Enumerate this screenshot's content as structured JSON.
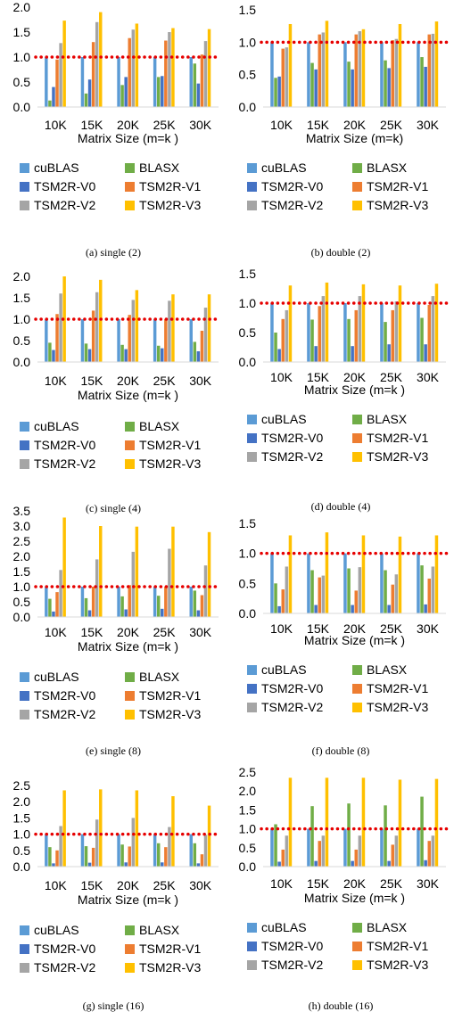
{
  "series_colors": [
    "#5B9BD5",
    "#70AD47",
    "#4472C4",
    "#ED7D31",
    "#A5A5A5",
    "#FFC000"
  ],
  "baseline_color": "#E60000",
  "chart_data": [
    {
      "type": "bar",
      "caption": "(a) single (2)",
      "categories": [
        "10K",
        "15K",
        "20K",
        "25K",
        "30K"
      ],
      "xlabel": "Matrix Size (m=k )",
      "ylim": [
        0,
        2.0
      ],
      "yticks": [
        "0.0",
        "0.5",
        "1.0",
        "1.5",
        "2.0"
      ],
      "baseline": 1.0,
      "series": [
        {
          "name": "cuBLAS",
          "values": [
            1.0,
            1.0,
            1.0,
            1.0,
            1.0
          ]
        },
        {
          "name": "BLASX",
          "values": [
            0.13,
            0.27,
            0.44,
            0.6,
            0.87
          ]
        },
        {
          "name": "TSM2R-V0",
          "values": [
            0.4,
            0.55,
            0.6,
            0.62,
            0.47
          ]
        },
        {
          "name": "TSM2R-V1",
          "values": [
            0.95,
            1.3,
            1.38,
            1.33,
            1.05
          ]
        },
        {
          "name": "TSM2R-V2",
          "values": [
            1.28,
            1.7,
            1.55,
            1.5,
            1.32
          ]
        },
        {
          "name": "TSM2R-V3",
          "values": [
            1.73,
            1.9,
            1.67,
            1.58,
            1.56
          ]
        }
      ]
    },
    {
      "type": "bar",
      "caption": "(b) double (2)",
      "categories": [
        "10K",
        "15K",
        "20K",
        "25K",
        "30K"
      ],
      "xlabel": "Matrix Size (m=k)",
      "ylim": [
        0,
        1.5
      ],
      "yticks": [
        "0.0",
        "0.5",
        "1.0",
        "1.5"
      ],
      "baseline": 1.0,
      "series": [
        {
          "name": "cuBLAS",
          "values": [
            1.0,
            1.0,
            1.0,
            1.0,
            1.0
          ]
        },
        {
          "name": "BLASX",
          "values": [
            0.45,
            0.68,
            0.7,
            0.72,
            0.77
          ]
        },
        {
          "name": "TSM2R-V0",
          "values": [
            0.47,
            0.58,
            0.58,
            0.6,
            0.62
          ]
        },
        {
          "name": "TSM2R-V1",
          "values": [
            0.9,
            1.12,
            1.12,
            1.03,
            1.12
          ]
        },
        {
          "name": "TSM2R-V2",
          "values": [
            0.92,
            1.15,
            1.17,
            1.05,
            1.13
          ]
        },
        {
          "name": "TSM2R-V3",
          "values": [
            1.28,
            1.33,
            1.2,
            1.28,
            1.32
          ]
        }
      ]
    },
    {
      "type": "bar",
      "caption": "(c) single (4)",
      "categories": [
        "10K",
        "15K",
        "20K",
        "25K",
        "30K"
      ],
      "xlabel": "Matrix Size (m=k )",
      "ylim": [
        0,
        2.0
      ],
      "yticks": [
        "0.0",
        "0.5",
        "1.0",
        "1.5",
        "2.0"
      ],
      "baseline": 1.0,
      "series": [
        {
          "name": "cuBLAS",
          "values": [
            1.0,
            1.0,
            1.0,
            1.0,
            1.0
          ]
        },
        {
          "name": "BLASX",
          "values": [
            0.45,
            0.43,
            0.4,
            0.38,
            0.47
          ]
        },
        {
          "name": "TSM2R-V0",
          "values": [
            0.28,
            0.3,
            0.3,
            0.32,
            0.25
          ]
        },
        {
          "name": "TSM2R-V1",
          "values": [
            1.12,
            1.2,
            1.1,
            1.0,
            0.73
          ]
        },
        {
          "name": "TSM2R-V2",
          "values": [
            1.6,
            1.63,
            1.45,
            1.43,
            1.27
          ]
        },
        {
          "name": "TSM2R-V3",
          "values": [
            2.0,
            1.92,
            1.68,
            1.58,
            1.58
          ]
        }
      ]
    },
    {
      "type": "bar",
      "caption": "(d) double (4)",
      "categories": [
        "10K",
        "15K",
        "20K",
        "25K",
        "30K"
      ],
      "xlabel": "Matrix Size (m=k )",
      "ylim": [
        0,
        1.5
      ],
      "yticks": [
        "0.0",
        "0.5",
        "1.0",
        "1.5"
      ],
      "baseline": 1.0,
      "series": [
        {
          "name": "cuBLAS",
          "values": [
            1.0,
            1.0,
            1.0,
            1.0,
            1.0
          ]
        },
        {
          "name": "BLASX",
          "values": [
            0.5,
            0.72,
            0.73,
            0.68,
            0.75
          ]
        },
        {
          "name": "TSM2R-V0",
          "values": [
            0.22,
            0.27,
            0.27,
            0.3,
            0.3
          ]
        },
        {
          "name": "TSM2R-V1",
          "values": [
            0.73,
            0.95,
            0.88,
            0.88,
            0.97
          ]
        },
        {
          "name": "TSM2R-V2",
          "values": [
            0.88,
            1.12,
            1.12,
            1.03,
            1.12
          ]
        },
        {
          "name": "TSM2R-V3",
          "values": [
            1.3,
            1.35,
            1.32,
            1.3,
            1.33
          ]
        }
      ]
    },
    {
      "type": "bar",
      "caption": "(e) single (8)",
      "categories": [
        "10K",
        "15K",
        "20K",
        "25K",
        "30K"
      ],
      "xlabel": "Matrix Size (m=k )",
      "ylim": [
        0,
        3.5
      ],
      "yticks": [
        "0.0",
        "0.5",
        "1.0",
        "1.5",
        "2.0",
        "2.5",
        "3.0",
        "3.5"
      ],
      "baseline": 1.0,
      "series": [
        {
          "name": "cuBLAS",
          "values": [
            1.0,
            1.0,
            1.0,
            1.0,
            1.0
          ]
        },
        {
          "name": "BLASX",
          "values": [
            0.6,
            0.62,
            0.68,
            0.7,
            0.87
          ]
        },
        {
          "name": "TSM2R-V0",
          "values": [
            0.18,
            0.22,
            0.25,
            0.27,
            0.22
          ]
        },
        {
          "name": "TSM2R-V1",
          "values": [
            0.82,
            1.0,
            1.05,
            1.0,
            0.72
          ]
        },
        {
          "name": "TSM2R-V2",
          "values": [
            1.55,
            1.9,
            2.15,
            2.25,
            1.7
          ]
        },
        {
          "name": "TSM2R-V3",
          "values": [
            3.28,
            3.0,
            2.98,
            2.98,
            2.8
          ]
        }
      ]
    },
    {
      "type": "bar",
      "caption": "(f) double (8)",
      "categories": [
        "10K",
        "15K",
        "20K",
        "25K",
        "30K"
      ],
      "xlabel": "Matrix Size (m=k )",
      "ylim": [
        0,
        1.5
      ],
      "yticks": [
        "0.0",
        "0.5",
        "1.0",
        "1.5"
      ],
      "baseline": 1.0,
      "series": [
        {
          "name": "cuBLAS",
          "values": [
            1.0,
            1.0,
            1.0,
            1.0,
            1.0
          ]
        },
        {
          "name": "BLASX",
          "values": [
            0.5,
            0.72,
            0.75,
            0.72,
            0.8
          ]
        },
        {
          "name": "TSM2R-V0",
          "values": [
            0.12,
            0.14,
            0.14,
            0.14,
            0.15
          ]
        },
        {
          "name": "TSM2R-V1",
          "values": [
            0.4,
            0.6,
            0.38,
            0.48,
            0.58
          ]
        },
        {
          "name": "TSM2R-V2",
          "values": [
            0.78,
            0.63,
            0.77,
            0.65,
            0.78
          ]
        },
        {
          "name": "TSM2R-V3",
          "values": [
            1.3,
            1.35,
            1.3,
            1.28,
            1.3
          ]
        }
      ]
    },
    {
      "type": "bar",
      "caption": "(g) single (16)",
      "categories": [
        "10K",
        "15K",
        "20K",
        "25K",
        "30K"
      ],
      "xlabel": "Matrix Size (m=k )",
      "ylim": [
        0,
        2.5
      ],
      "yticks": [
        "0.0",
        "0.5",
        "1.0",
        "1.5",
        "2.0",
        "2.5"
      ],
      "baseline": 1.0,
      "series": [
        {
          "name": "cuBLAS",
          "values": [
            1.0,
            1.0,
            1.0,
            1.0,
            1.0
          ]
        },
        {
          "name": "BLASX",
          "values": [
            0.6,
            0.63,
            0.68,
            0.72,
            0.72
          ]
        },
        {
          "name": "TSM2R-V0",
          "values": [
            0.1,
            0.12,
            0.13,
            0.13,
            0.1
          ]
        },
        {
          "name": "TSM2R-V1",
          "values": [
            0.5,
            0.58,
            0.62,
            0.6,
            0.38
          ]
        },
        {
          "name": "TSM2R-V2",
          "values": [
            1.25,
            1.45,
            1.5,
            1.22,
            0.98
          ]
        },
        {
          "name": "TSM2R-V3",
          "values": [
            2.35,
            2.38,
            2.35,
            2.17,
            1.88
          ]
        }
      ]
    },
    {
      "type": "bar",
      "caption": "(h) double (16)",
      "categories": [
        "10K",
        "15K",
        "20K",
        "25K",
        "30K"
      ],
      "xlabel": "Matrix Size (m=k )",
      "ylim": [
        0,
        2.5
      ],
      "yticks": [
        "0.0",
        "0.5",
        "1.0",
        "1.5",
        "2.0",
        "2.5"
      ],
      "baseline": 1.0,
      "series": [
        {
          "name": "cuBLAS",
          "values": [
            1.0,
            1.0,
            1.0,
            1.0,
            1.0
          ]
        },
        {
          "name": "BLASX",
          "values": [
            1.12,
            1.6,
            1.67,
            1.62,
            1.85
          ]
        },
        {
          "name": "TSM2R-V0",
          "values": [
            0.13,
            0.15,
            0.15,
            0.15,
            0.17
          ]
        },
        {
          "name": "TSM2R-V1",
          "values": [
            0.45,
            0.68,
            0.45,
            0.58,
            0.68
          ]
        },
        {
          "name": "TSM2R-V2",
          "values": [
            0.82,
            0.82,
            0.82,
            0.82,
            0.82
          ]
        },
        {
          "name": "TSM2R-V3",
          "values": [
            2.35,
            2.35,
            2.35,
            2.3,
            2.32
          ]
        }
      ]
    }
  ]
}
